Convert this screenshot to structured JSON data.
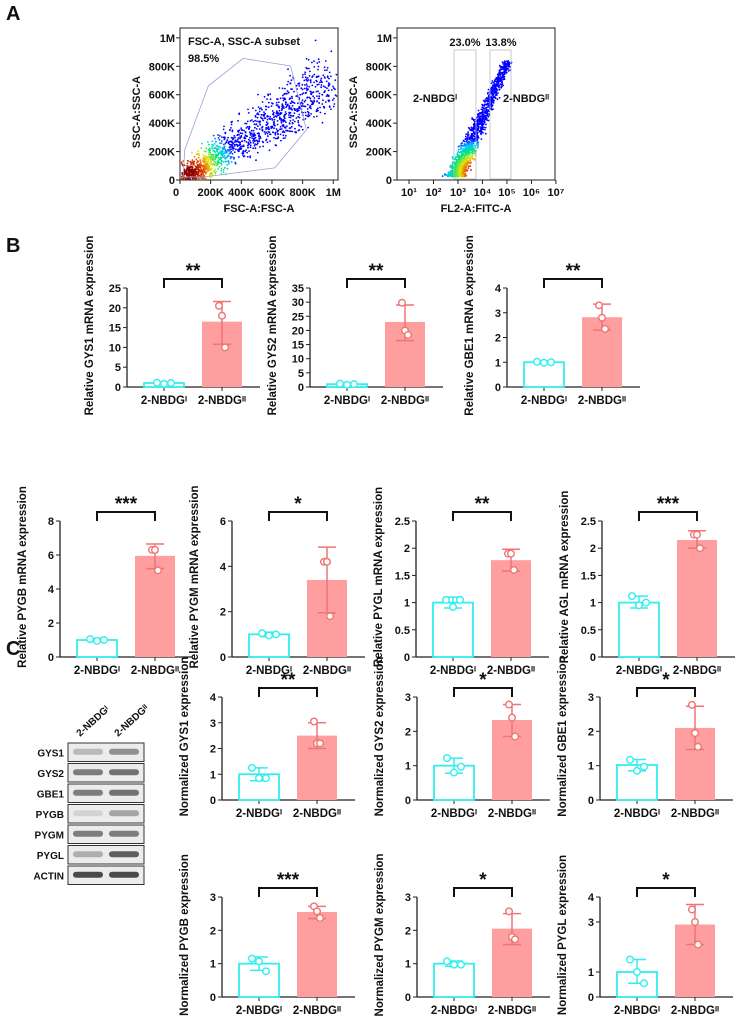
{
  "panels": {
    "a": "A",
    "b": "B",
    "c": "C"
  },
  "colors": {
    "group1": "#33eeee",
    "group2_fill": "#ff9e9e",
    "group2_line": "#f07474",
    "text": "#111111"
  },
  "flow": [
    {
      "gate_label": "FSC-A, SSC-A subset",
      "gate_pct": "98.5%",
      "xlabel": "FSC-A:FSC-A",
      "ylabel": "SSC-A:SSC-A",
      "xticks": [
        "0",
        "200K",
        "400K",
        "600K",
        "800K",
        "1M"
      ],
      "yticks": [
        "0",
        "200K",
        "400K",
        "600K",
        "800K",
        "1M"
      ]
    },
    {
      "gate1_pct": "23.0%",
      "gate2_pct": "13.8%",
      "gate1_label": "2-NBDGᴵ",
      "gate2_label": "2-NBDGᴵᴵ",
      "xlabel": "FL2-A:FITC-A",
      "ylabel": "SSC-A:SSC-A",
      "xticks": [
        "10¹",
        "10²",
        "10³",
        "10⁴",
        "10⁵",
        "10⁶",
        "10⁷"
      ],
      "yticks": [
        "0",
        "200K",
        "400K",
        "600K",
        "800K",
        "1M"
      ]
    }
  ],
  "blot": {
    "columns": [
      "2-NBDGᴵ",
      "2-NBDGᴵᴵ"
    ],
    "rows": [
      "GYS1",
      "GYS2",
      "GBE1",
      "PYGB",
      "PYGM",
      "PYGL",
      "ACTIN"
    ]
  },
  "chart_data": [
    {
      "type": "bar",
      "panel": "B",
      "categories": [
        "2-NBDGᴵ",
        "2-NBDGᴵᴵ"
      ],
      "ylabel": "Relative GYS1 mRNA expression",
      "yticks": [
        0,
        5,
        10,
        15,
        20,
        25
      ],
      "ylim": [
        0,
        25
      ],
      "values": [
        1.0,
        16.5
      ],
      "points": [
        [
          1.1,
          0.8,
          1.0
        ],
        [
          20.5,
          18.0,
          10.0
        ]
      ],
      "error": [
        [
          0.8,
          1.2
        ],
        [
          10.8,
          21.6
        ]
      ],
      "significance": "**"
    },
    {
      "type": "bar",
      "panel": "B",
      "categories": [
        "2-NBDGᴵ",
        "2-NBDGᴵᴵ"
      ],
      "ylabel": "Relative GYS2 mRNA expression",
      "yticks": [
        0,
        5,
        10,
        15,
        20,
        25,
        30,
        35
      ],
      "ylim": [
        0,
        35
      ],
      "values": [
        1.0,
        23.0
      ],
      "points": [
        [
          1.2,
          0.8,
          1.0
        ],
        [
          29.8,
          20.0,
          18.4
        ]
      ],
      "error": [
        [
          0.7,
          1.3
        ],
        [
          16.4,
          29.0
        ]
      ],
      "significance": "**"
    },
    {
      "type": "bar",
      "panel": "B",
      "categories": [
        "2-NBDGᴵ",
        "2-NBDGᴵᴵ"
      ],
      "ylabel": "Relative GBE1 mRNA expression",
      "yticks": [
        0,
        1,
        2,
        3,
        4
      ],
      "ylim": [
        0,
        4
      ],
      "values": [
        1.0,
        2.82
      ],
      "points": [
        [
          1.02,
          0.98,
          1.0
        ],
        [
          3.3,
          2.8,
          2.35
        ]
      ],
      "error": [
        [
          0.95,
          1.05
        ],
        [
          2.3,
          3.35
        ]
      ],
      "significance": "**"
    },
    {
      "type": "bar",
      "panel": "B",
      "categories": [
        "2-NBDGᴵ",
        "2-NBDGᴵᴵ"
      ],
      "ylabel": "Relative PYGB mRNA expression",
      "yticks": [
        0,
        2,
        4,
        6,
        8
      ],
      "ylim": [
        0,
        8
      ],
      "values": [
        1.0,
        5.95
      ],
      "points": [
        [
          1.05,
          0.95,
          1.0
        ],
        [
          6.3,
          6.3,
          5.1
        ]
      ],
      "error": [
        [
          0.9,
          1.1
        ],
        [
          5.2,
          6.65
        ]
      ],
      "significance": "***"
    },
    {
      "type": "bar",
      "panel": "B",
      "categories": [
        "2-NBDGᴵ",
        "2-NBDGᴵᴵ"
      ],
      "ylabel": "Relative PYGM mRNA expression",
      "yticks": [
        0,
        2,
        4,
        6
      ],
      "ylim": [
        0,
        6
      ],
      "values": [
        1.0,
        3.4
      ],
      "points": [
        [
          1.05,
          0.95,
          1.0
        ],
        [
          4.2,
          4.2,
          1.8
        ]
      ],
      "error": [
        [
          0.9,
          1.1
        ],
        [
          1.95,
          4.85
        ]
      ],
      "significance": "*"
    },
    {
      "type": "bar",
      "panel": "B",
      "categories": [
        "2-NBDGᴵ",
        "2-NBDGᴵᴵ"
      ],
      "ylabel": "Relative PYGL mRNA expression",
      "yticks": [
        0,
        0.5,
        1.0,
        1.5,
        2.0,
        2.5
      ],
      "ylim": [
        0,
        2.5
      ],
      "values": [
        1.0,
        1.78
      ],
      "points": [
        [
          1.05,
          0.92,
          1.05
        ],
        [
          1.9,
          1.9,
          1.6
        ]
      ],
      "error": [
        [
          0.9,
          1.1
        ],
        [
          1.58,
          1.98
        ]
      ],
      "significance": "**"
    },
    {
      "type": "bar",
      "panel": "B",
      "categories": [
        "2-NBDGᴵ",
        "2-NBDGᴵᴵ"
      ],
      "ylabel": "Relative AGL mRNA expression",
      "yticks": [
        0,
        0.5,
        1.0,
        1.5,
        2.0,
        2.5
      ],
      "ylim": [
        0,
        2.5
      ],
      "values": [
        1.0,
        2.15
      ],
      "points": [
        [
          1.12,
          0.95,
          1.0
        ],
        [
          2.25,
          2.25,
          2.0
        ]
      ],
      "error": [
        [
          0.9,
          1.12
        ],
        [
          2.0,
          2.32
        ]
      ],
      "significance": "***"
    },
    {
      "type": "bar",
      "panel": "C",
      "categories": [
        "2-NBDGᴵ",
        "2-NBDGᴵᴵ"
      ],
      "ylabel": "Normalized GYS1 expression",
      "yticks": [
        0,
        1,
        2,
        3,
        4
      ],
      "ylim": [
        0,
        4
      ],
      "values": [
        1.0,
        2.5
      ],
      "points": [
        [
          1.25,
          0.85,
          0.85
        ],
        [
          3.05,
          2.2,
          2.2
        ]
      ],
      "error": [
        [
          0.75,
          1.25
        ],
        [
          2.0,
          3.0
        ]
      ],
      "significance": "**"
    },
    {
      "type": "bar",
      "panel": "C",
      "categories": [
        "2-NBDGᴵ",
        "2-NBDGᴵᴵ"
      ],
      "ylabel": "Normalized GYS2 expression",
      "yticks": [
        0,
        1,
        2,
        3
      ],
      "ylim": [
        0,
        3
      ],
      "values": [
        1.0,
        2.33
      ],
      "points": [
        [
          1.22,
          0.8,
          0.97
        ],
        [
          2.78,
          2.4,
          1.85
        ]
      ],
      "error": [
        [
          0.78,
          1.22
        ],
        [
          1.85,
          2.78
        ]
      ],
      "significance": "*"
    },
    {
      "type": "bar",
      "panel": "C",
      "categories": [
        "2-NBDGᴵ",
        "2-NBDGᴵᴵ"
      ],
      "ylabel": "Normalized GBE1 expression",
      "yticks": [
        0,
        1,
        2,
        3
      ],
      "ylim": [
        0,
        3
      ],
      "values": [
        1.02,
        2.1
      ],
      "points": [
        [
          1.17,
          0.85,
          0.97
        ],
        [
          2.77,
          1.95,
          1.55
        ]
      ],
      "error": [
        [
          0.85,
          1.18
        ],
        [
          1.47,
          2.73
        ]
      ],
      "significance": "*"
    },
    {
      "type": "bar",
      "panel": "C",
      "categories": [
        "2-NBDGᴵ",
        "2-NBDGᴵᴵ"
      ],
      "ylabel": "Normalized PYGB expression",
      "yticks": [
        0,
        1,
        2,
        3
      ],
      "ylim": [
        0,
        3
      ],
      "values": [
        1.0,
        2.55
      ],
      "points": [
        [
          1.15,
          1.07,
          0.77
        ],
        [
          2.72,
          2.57,
          2.37
        ]
      ],
      "error": [
        [
          0.8,
          1.2
        ],
        [
          2.35,
          2.72
        ]
      ],
      "significance": "***"
    },
    {
      "type": "bar",
      "panel": "C",
      "categories": [
        "2-NBDGᴵ",
        "2-NBDGᴵᴵ"
      ],
      "ylabel": "Normalized PYGM expression",
      "yticks": [
        0,
        1,
        2,
        3
      ],
      "ylim": [
        0,
        3
      ],
      "values": [
        1.0,
        2.05
      ],
      "points": [
        [
          1.07,
          0.97,
          0.97
        ],
        [
          2.57,
          1.8,
          1.73
        ]
      ],
      "error": [
        [
          0.92,
          1.08
        ],
        [
          1.57,
          2.5
        ]
      ],
      "significance": "*"
    },
    {
      "type": "bar",
      "panel": "C",
      "categories": [
        "2-NBDGᴵ",
        "2-NBDGᴵᴵ"
      ],
      "ylabel": "Normalized PYGL expression",
      "yticks": [
        0,
        1,
        3,
        4
      ],
      "ylim": [
        0,
        4
      ],
      "values": [
        1.0,
        2.9
      ],
      "points": [
        [
          1.5,
          1.0,
          0.55
        ],
        [
          3.5,
          3.0,
          2.1
        ]
      ],
      "error": [
        [
          0.55,
          1.5
        ],
        [
          2.1,
          3.7
        ]
      ],
      "significance": "*"
    }
  ]
}
